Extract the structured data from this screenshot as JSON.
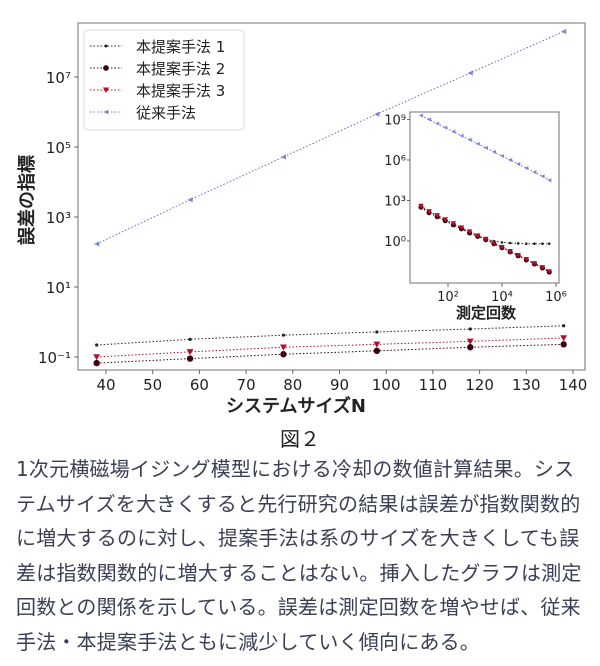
{
  "figure_label": "図２",
  "caption": "1次元横磁場イジング模型における冷却の数値計算結果。システムサイズを大きくすると先行研究の結果は誤差が指数関数的に増大するのに対し、提案手法は系のサイズを大きくしても誤差は指数関数的に増大することはない。挿入したグラフは測定回数との関係を示している。誤差は測定回数を増やせば、従来手法・本提案手法ともに減少していく傾向にある。",
  "chart_data": [
    {
      "type": "line",
      "title": "",
      "xlabel": "システムサイズN",
      "ylabel": "誤差の指標",
      "yscale": "log",
      "xlim": [
        34,
        141
      ],
      "ylim_log10": [
        -1.35,
        8.6
      ],
      "xticks": [
        40,
        50,
        60,
        70,
        80,
        90,
        100,
        110,
        120,
        130,
        140
      ],
      "yticks_log10": [
        -1,
        1,
        3,
        5,
        7
      ],
      "ytick_labels": [
        "10⁻¹",
        "10¹",
        "10³",
        "10⁵",
        "10⁷"
      ],
      "grid": false,
      "legend_position": "upper left",
      "x": [
        38,
        58,
        78,
        98,
        118,
        138
      ],
      "series": [
        {
          "name": "本提案手法 1",
          "color": "#222222",
          "marker": "dot",
          "values": [
            0.22,
            0.32,
            0.42,
            0.52,
            0.63,
            0.78
          ]
        },
        {
          "name": "本提案手法 2",
          "color": "#3a0010",
          "marker": "circle",
          "values": [
            0.067,
            0.09,
            0.12,
            0.15,
            0.19,
            0.23
          ]
        },
        {
          "name": "本提案手法 3",
          "color": "#b0102a",
          "marker": "triangle-down",
          "values": [
            0.1,
            0.14,
            0.19,
            0.23,
            0.28,
            0.35
          ]
        },
        {
          "name": "従来手法",
          "color": "#6a6ad0",
          "marker": "triangle-left",
          "values": [
            170,
            3100,
            52000,
            870000,
            13000000,
            200000000
          ]
        }
      ]
    },
    {
      "type": "line",
      "title": "inset",
      "xlabel": "測定回数",
      "ylabel": "",
      "xscale": "log",
      "yscale": "log",
      "xlim_log10": [
        0.6,
        6.0
      ],
      "ylim_log10": [
        -3.2,
        9.6
      ],
      "xticks_log10": [
        2,
        4,
        6
      ],
      "xtick_labels": [
        "10²",
        "10⁴",
        "10⁶"
      ],
      "yticks_log10": [
        0,
        3,
        6,
        9
      ],
      "ytick_labels": [
        "10⁰",
        "10³",
        "10⁶",
        "10⁹"
      ],
      "x_log10": [
        1.0,
        1.3,
        1.6,
        1.9,
        2.2,
        2.5,
        2.8,
        3.1,
        3.4,
        3.7,
        4.0,
        4.3,
        4.6,
        4.9,
        5.2,
        5.5,
        5.75
      ],
      "series": [
        {
          "name": "本提案手法 1",
          "color": "#222222",
          "values_log10": [
            2.5,
            2.1,
            1.8,
            1.5,
            1.2,
            0.9,
            0.6,
            0.35,
            0.15,
            0.0,
            -0.1,
            -0.15,
            -0.18,
            -0.2,
            -0.2,
            -0.2,
            -0.2
          ]
        },
        {
          "name": "本提案手法 2",
          "color": "#3a0010",
          "values_log10": [
            2.5,
            2.1,
            1.8,
            1.5,
            1.2,
            0.9,
            0.6,
            0.35,
            0.1,
            -0.2,
            -0.5,
            -0.8,
            -1.1,
            -1.4,
            -1.7,
            -2.0,
            -2.3
          ]
        },
        {
          "name": "本提案手法 3",
          "color": "#b0102a",
          "values_log10": [
            2.6,
            2.2,
            1.9,
            1.6,
            1.3,
            1.0,
            0.7,
            0.4,
            0.15,
            -0.15,
            -0.45,
            -0.75,
            -1.05,
            -1.35,
            -1.65,
            -1.95,
            -2.25
          ]
        },
        {
          "name": "従来手法",
          "color": "#6a6ad0",
          "values_log10": [
            9.3,
            9.0,
            8.7,
            8.4,
            8.1,
            7.8,
            7.5,
            7.2,
            6.9,
            6.6,
            6.3,
            6.0,
            5.7,
            5.4,
            5.1,
            4.8,
            4.5
          ]
        }
      ]
    }
  ]
}
